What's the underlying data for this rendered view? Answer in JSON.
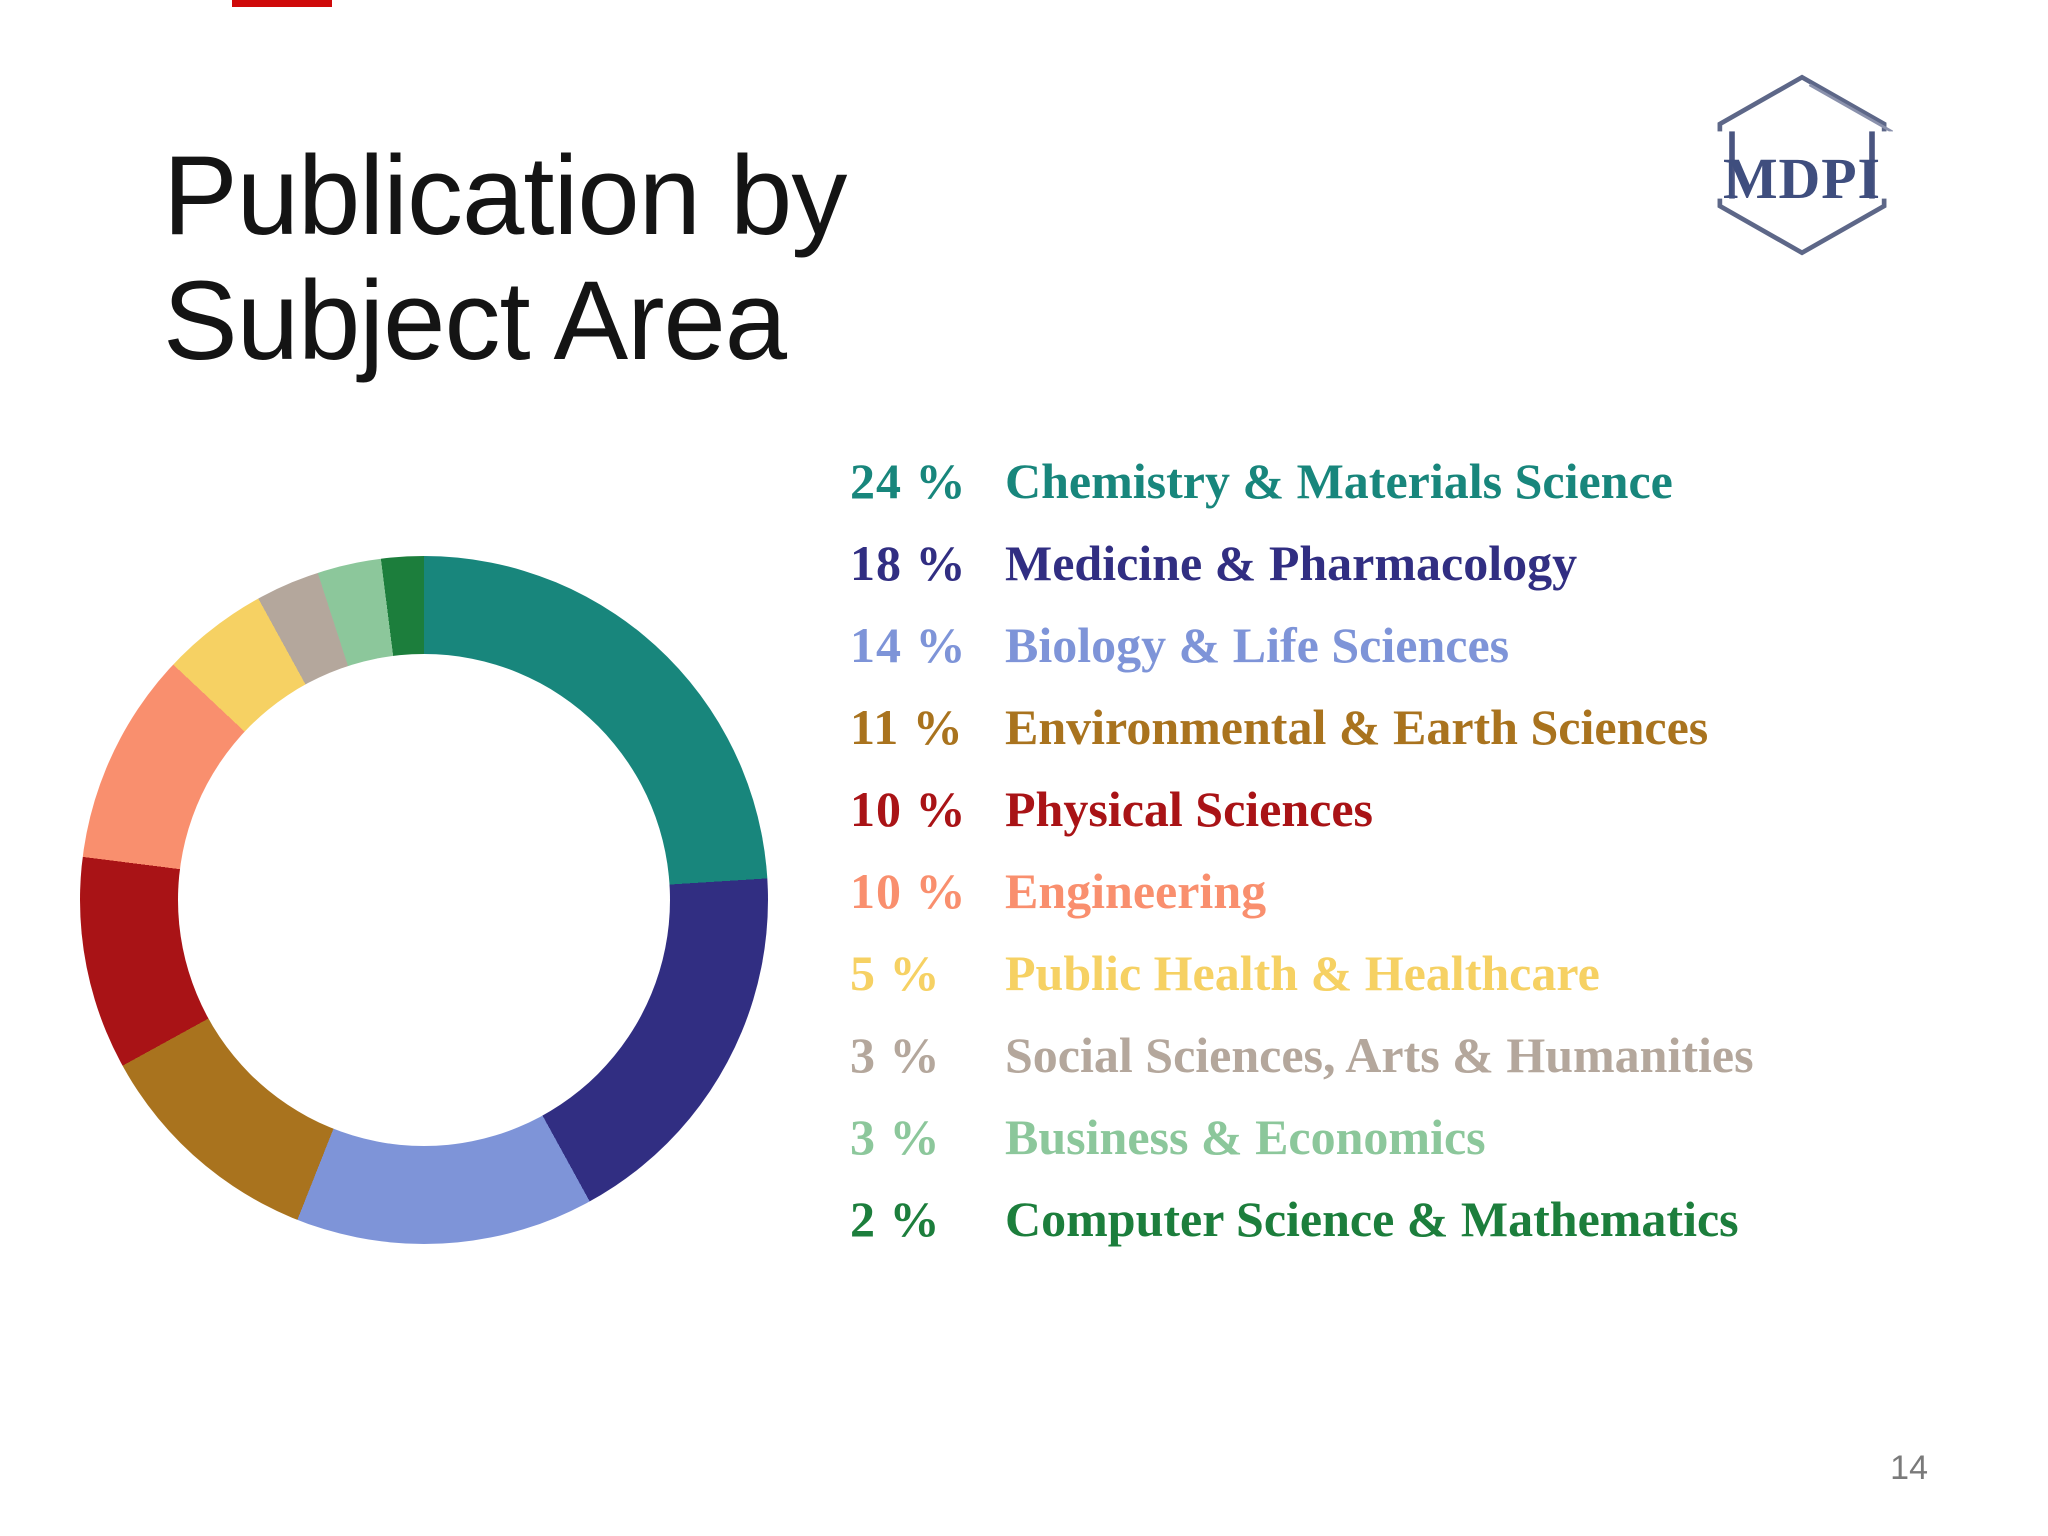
{
  "slide": {
    "title": "Publication by Subject Area",
    "logo_text": "MDPI",
    "page_number": "14"
  },
  "chart_data": {
    "type": "pie",
    "subtype": "donut",
    "title": "Publication by Subject Area",
    "start_angle_deg": 0,
    "direction": "clockwise",
    "legend_position": "right",
    "unit": "%",
    "categories": [
      "Chemistry & Materials Science",
      "Medicine & Pharmacology",
      "Biology & Life Sciences",
      "Environmental & Earth Sciences",
      "Physical Sciences",
      "Engineering",
      "Public Health & Healthcare",
      "Social Sciences, Arts & Humanities",
      "Business & Economics",
      "Computer Science & Mathematics"
    ],
    "values": [
      24,
      18,
      14,
      11,
      10,
      10,
      5,
      3,
      3,
      2
    ],
    "percent_labels": [
      "24 %",
      "18 %",
      "14 %",
      "11 %",
      "10 %",
      "10 %",
      "5 %",
      "3 %",
      "3 %",
      "2 %"
    ],
    "colors": [
      "#18867c",
      "#312e82",
      "#7e94d8",
      "#a9731e",
      "#a91316",
      "#f98f6e",
      "#f6d163",
      "#b4a79c",
      "#8cc79b",
      "#1c7e3c"
    ]
  }
}
